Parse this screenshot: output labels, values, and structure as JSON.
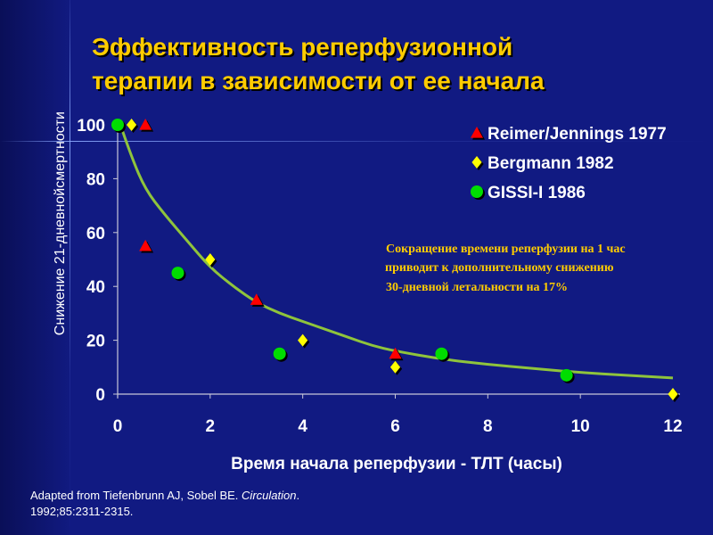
{
  "slide": {
    "title_line1": "Эффективность реперфузионной",
    "title_line2": "терапии в зависимости от ее начала",
    "source_line1_prefix": "Adapted from Tiefenbrunn AJ, Sobel BE. ",
    "source_line1_journal": "Circulation",
    "source_line1_suffix": ".",
    "source_line2": "1992;85:2311-2315."
  },
  "colors": {
    "background": "#111a82",
    "title": "#ffcc00",
    "curve": "#8fc43c",
    "annotation": "#ffcc00",
    "reimer": "#ff0000",
    "bergmann": "#ffff00",
    "gissi": "#00dd00"
  },
  "chart_data": {
    "type": "scatter",
    "xlabel": "Время начала реперфузии - ТЛТ (часы)",
    "ylabel": "Снижение 21-дневнойсмертности",
    "xlim": [
      0,
      12
    ],
    "ylim": [
      0,
      100
    ],
    "xticks": [
      "0",
      "2",
      "4",
      "6",
      "8",
      "10",
      "12"
    ],
    "yticks": [
      "0",
      "20",
      "40",
      "60",
      "80",
      "100"
    ],
    "legend_position": "top-right",
    "series": [
      {
        "name": "Reimer/Jennings 1977",
        "marker": "triangle",
        "color": "#ff0000",
        "points": [
          [
            0.6,
            100
          ],
          [
            0.6,
            55
          ],
          [
            3.0,
            35
          ],
          [
            6.0,
            15
          ]
        ]
      },
      {
        "name": "Bergmann 1982",
        "marker": "diamond",
        "color": "#ffff00",
        "points": [
          [
            0.3,
            100
          ],
          [
            2.0,
            50
          ],
          [
            4.0,
            20
          ],
          [
            6.0,
            10
          ],
          [
            12.0,
            0
          ]
        ]
      },
      {
        "name": "GISSI-I 1986",
        "marker": "circle",
        "color": "#00dd00",
        "points": [
          [
            0.0,
            100
          ],
          [
            1.3,
            45
          ],
          [
            3.5,
            15
          ],
          [
            7.0,
            15
          ],
          [
            9.7,
            7
          ]
        ]
      }
    ],
    "trend_curve": [
      [
        0.1,
        98
      ],
      [
        0.3,
        88
      ],
      [
        0.6,
        76
      ],
      [
        1.0,
        67
      ],
      [
        1.5,
        57
      ],
      [
        2.0,
        47
      ],
      [
        2.5,
        40
      ],
      [
        3.0,
        34
      ],
      [
        3.5,
        30
      ],
      [
        4.0,
        27
      ],
      [
        4.5,
        24
      ],
      [
        5.0,
        21
      ],
      [
        5.5,
        18
      ],
      [
        6.0,
        16
      ],
      [
        7.0,
        13
      ],
      [
        8.0,
        11
      ],
      [
        9.0,
        9.5
      ],
      [
        10.0,
        8
      ],
      [
        11.0,
        7
      ],
      [
        12.0,
        6
      ]
    ],
    "annotation": [
      "Сокращение времени реперфузии на 1 час",
      " приводит к дополнительному снижению",
      "30-дневной летальности на 17%"
    ]
  }
}
